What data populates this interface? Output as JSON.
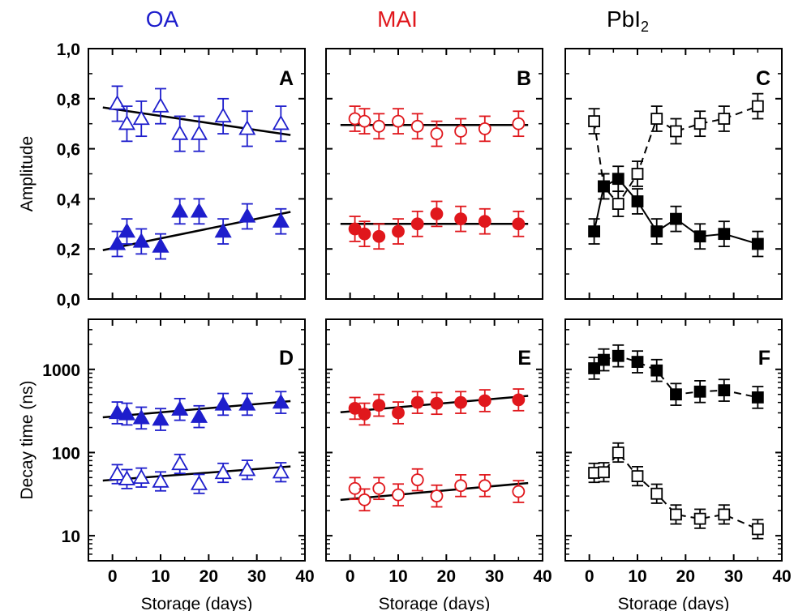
{
  "column_titles": [
    {
      "text": "OA",
      "color": "#1e1ecc"
    },
    {
      "text": "MAI",
      "color": "#e0171c"
    },
    {
      "text": "PbI",
      "sub": "2",
      "color": "#000000"
    }
  ],
  "colors": {
    "OA": "#1e1ecc",
    "MAI": "#e0171c",
    "PbI2": "#000000",
    "fit": "#000000"
  },
  "chart_data": [
    {
      "panel": "A",
      "type": "scatter",
      "column": "OA",
      "ylabel": "Amplitude",
      "xlim": [
        -5,
        40
      ],
      "ylim": [
        0,
        1.0
      ],
      "yscale": "linear",
      "xticks": [
        "0",
        "10",
        "20",
        "30",
        "40"
      ],
      "yticks": [
        "0,0",
        "0,2",
        "0,4",
        "0,6",
        "0,8",
        "1,0"
      ],
      "series": [
        {
          "marker": "triangle-open",
          "x": [
            1,
            3,
            6,
            10,
            14,
            18,
            23,
            28,
            35
          ],
          "y": [
            0.78,
            0.7,
            0.72,
            0.77,
            0.66,
            0.66,
            0.73,
            0.68,
            0.7
          ],
          "err": [
            0.07,
            0.07,
            0.07,
            0.07,
            0.07,
            0.07,
            0.07,
            0.07,
            0.07
          ],
          "fit": [
            [
              -2,
              0.765
            ],
            [
              37,
              0.655
            ]
          ]
        },
        {
          "marker": "triangle-filled",
          "x": [
            1,
            3,
            6,
            10,
            14,
            18,
            23,
            28,
            35
          ],
          "y": [
            0.22,
            0.27,
            0.23,
            0.21,
            0.35,
            0.35,
            0.27,
            0.33,
            0.31
          ],
          "err": [
            0.05,
            0.05,
            0.05,
            0.05,
            0.05,
            0.05,
            0.05,
            0.05,
            0.05
          ],
          "fit": [
            [
              -2,
              0.195
            ],
            [
              37,
              0.348
            ]
          ]
        }
      ]
    },
    {
      "panel": "B",
      "type": "scatter",
      "column": "MAI",
      "xlim": [
        -5,
        40
      ],
      "ylim": [
        0,
        1.0
      ],
      "yscale": "linear",
      "xticks": [
        "0",
        "10",
        "20",
        "30",
        "40"
      ],
      "series": [
        {
          "marker": "circle-open",
          "x": [
            1,
            3,
            6,
            10,
            14,
            18,
            23,
            28,
            35
          ],
          "y": [
            0.72,
            0.71,
            0.69,
            0.71,
            0.69,
            0.66,
            0.67,
            0.68,
            0.7
          ],
          "err": [
            0.05,
            0.05,
            0.05,
            0.05,
            0.05,
            0.05,
            0.05,
            0.05,
            0.05
          ],
          "fit": [
            [
              -2,
              0.695
            ],
            [
              37,
              0.695
            ]
          ]
        },
        {
          "marker": "circle-filled",
          "x": [
            1,
            3,
            6,
            10,
            14,
            18,
            23,
            28,
            35
          ],
          "y": [
            0.28,
            0.26,
            0.25,
            0.27,
            0.3,
            0.34,
            0.32,
            0.31,
            0.3
          ],
          "err": [
            0.05,
            0.05,
            0.05,
            0.05,
            0.05,
            0.05,
            0.05,
            0.05,
            0.05
          ],
          "fit": [
            [
              -2,
              0.3
            ],
            [
              37,
              0.3
            ]
          ]
        }
      ]
    },
    {
      "panel": "C",
      "type": "line",
      "column": "PbI2",
      "xlim": [
        -5,
        40
      ],
      "ylim": [
        0,
        1.0
      ],
      "yscale": "linear",
      "xticks": [
        "0",
        "10",
        "20",
        "30",
        "40"
      ],
      "series": [
        {
          "marker": "square-open",
          "dashed": true,
          "x": [
            1,
            3,
            6,
            10,
            14,
            18,
            23,
            28,
            35
          ],
          "y": [
            0.71,
            0.45,
            0.38,
            0.5,
            0.72,
            0.67,
            0.7,
            0.72,
            0.77
          ],
          "err": [
            0.05,
            0.05,
            0.05,
            0.05,
            0.05,
            0.05,
            0.05,
            0.05,
            0.05
          ]
        },
        {
          "marker": "square-filled",
          "dashed": false,
          "x": [
            1,
            3,
            6,
            10,
            14,
            18,
            23,
            28,
            35
          ],
          "y": [
            0.27,
            0.45,
            0.48,
            0.39,
            0.27,
            0.32,
            0.25,
            0.26,
            0.22
          ],
          "err": [
            0.05,
            0.05,
            0.05,
            0.05,
            0.05,
            0.05,
            0.05,
            0.05,
            0.05
          ]
        }
      ]
    },
    {
      "panel": "D",
      "type": "scatter",
      "column": "OA",
      "ylabel": "Decay time (ns)",
      "xlabel": "Storage (days)",
      "xlim": [
        -5,
        40
      ],
      "ylim": [
        5,
        4000
      ],
      "yscale": "log",
      "xticks": [
        "0",
        "10",
        "20",
        "30",
        "40"
      ],
      "yticks": [
        "10",
        "100",
        "1000"
      ],
      "series": [
        {
          "marker": "triangle-filled",
          "x": [
            1,
            3,
            6,
            10,
            14,
            18,
            23,
            28,
            35
          ],
          "y": [
            300,
            290,
            260,
            250,
            330,
            270,
            380,
            380,
            400
          ],
          "errf": 1.35,
          "fit": [
            [
              -2,
              265
            ],
            [
              37,
              415
            ]
          ]
        },
        {
          "marker": "triangle-open",
          "x": [
            1,
            3,
            6,
            10,
            14,
            18,
            23,
            28,
            35
          ],
          "y": [
            55,
            48,
            50,
            45,
            73,
            42,
            57,
            62,
            58
          ],
          "errf": 1.3,
          "fit": [
            [
              -2,
              46
            ],
            [
              37,
              68
            ]
          ]
        }
      ]
    },
    {
      "panel": "E",
      "type": "scatter",
      "column": "MAI",
      "xlabel": "Storage (days)",
      "xlim": [
        -5,
        40
      ],
      "ylim": [
        5,
        4000
      ],
      "yscale": "log",
      "xticks": [
        "0",
        "10",
        "20",
        "30",
        "40"
      ],
      "series": [
        {
          "marker": "circle-filled",
          "x": [
            1,
            3,
            6,
            10,
            14,
            18,
            23,
            28,
            35
          ],
          "y": [
            340,
            290,
            370,
            300,
            400,
            390,
            400,
            420,
            430
          ],
          "errf": 1.35,
          "fit": [
            [
              -2,
              305
            ],
            [
              37,
              480
            ]
          ]
        },
        {
          "marker": "circle-open",
          "x": [
            1,
            3,
            6,
            10,
            14,
            18,
            23,
            28,
            35
          ],
          "y": [
            37,
            27,
            37,
            31,
            47,
            30,
            40,
            40,
            34
          ],
          "errf": 1.35,
          "fit": [
            [
              -2,
              27
            ],
            [
              37,
              43
            ]
          ]
        }
      ]
    },
    {
      "panel": "F",
      "type": "line",
      "column": "PbI2",
      "xlabel": "Storage (days)",
      "xlim": [
        -5,
        40
      ],
      "ylim": [
        5,
        4000
      ],
      "yscale": "log",
      "xticks": [
        "0",
        "10",
        "20",
        "30",
        "40"
      ],
      "series": [
        {
          "marker": "square-filled",
          "dashed": true,
          "x": [
            1,
            3,
            6,
            10,
            14,
            18,
            23,
            28,
            35
          ],
          "y": [
            1030,
            1300,
            1450,
            1230,
            970,
            500,
            540,
            560,
            460
          ],
          "errf": 1.35
        },
        {
          "marker": "square-open",
          "dashed": true,
          "x": [
            1,
            3,
            6,
            10,
            14,
            18,
            23,
            28,
            35
          ],
          "y": [
            57,
            58,
            100,
            52,
            32,
            18,
            16,
            18,
            12
          ],
          "errf": 1.3
        }
      ]
    }
  ]
}
